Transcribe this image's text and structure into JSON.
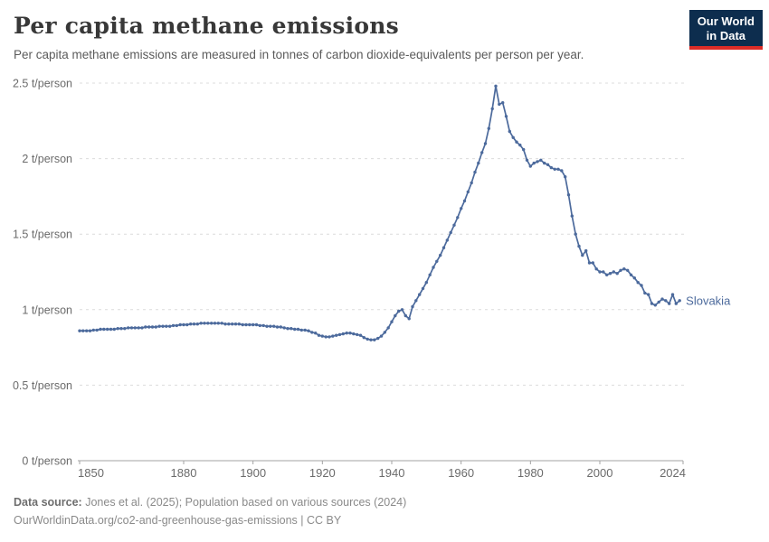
{
  "header": {
    "title": "Per capita methane emissions",
    "subtitle": "Per capita methane emissions are measured in tonnes of carbon dioxide-equivalents per person per year."
  },
  "logo": {
    "line1": "Our World",
    "line2": "in Data",
    "bg_color": "#0d2d4e",
    "accent_color": "#dc2c27"
  },
  "chart_data": {
    "type": "line",
    "title": "Per capita methane emissions",
    "unit": "t/person",
    "xlabel": "",
    "ylabel": "",
    "xlim": [
      1850,
      2024
    ],
    "ylim": [
      0,
      2.5
    ],
    "grid": "horizontal-dashed",
    "legend_position": "end-of-line-label",
    "x_ticks": [
      1850,
      1880,
      1900,
      1920,
      1940,
      1960,
      1980,
      2000,
      2024
    ],
    "y_ticks": [
      {
        "value": 0,
        "label": "0 t/person"
      },
      {
        "value": 0.5,
        "label": "0.5 t/person"
      },
      {
        "value": 1,
        "label": "1 t/person"
      },
      {
        "value": 1.5,
        "label": "1.5 t/person"
      },
      {
        "value": 2,
        "label": "2 t/person"
      },
      {
        "value": 2.5,
        "label": "2.5 t/person"
      }
    ],
    "series": [
      {
        "name": "Slovakia",
        "color": "#4c6a9c",
        "x_start": 1850,
        "x_step": 1,
        "values": [
          0.86,
          0.86,
          0.86,
          0.86,
          0.865,
          0.865,
          0.87,
          0.87,
          0.87,
          0.87,
          0.87,
          0.875,
          0.875,
          0.875,
          0.88,
          0.88,
          0.88,
          0.88,
          0.88,
          0.885,
          0.885,
          0.885,
          0.885,
          0.89,
          0.89,
          0.89,
          0.89,
          0.895,
          0.895,
          0.9,
          0.9,
          0.9,
          0.905,
          0.905,
          0.905,
          0.91,
          0.91,
          0.91,
          0.91,
          0.91,
          0.91,
          0.91,
          0.905,
          0.905,
          0.905,
          0.905,
          0.905,
          0.9,
          0.9,
          0.9,
          0.9,
          0.9,
          0.895,
          0.895,
          0.89,
          0.89,
          0.89,
          0.885,
          0.885,
          0.88,
          0.875,
          0.875,
          0.87,
          0.87,
          0.865,
          0.865,
          0.86,
          0.85,
          0.845,
          0.83,
          0.825,
          0.82,
          0.82,
          0.825,
          0.83,
          0.835,
          0.84,
          0.845,
          0.845,
          0.84,
          0.835,
          0.83,
          0.815,
          0.805,
          0.8,
          0.8,
          0.81,
          0.825,
          0.85,
          0.88,
          0.92,
          0.96,
          0.99,
          1.0,
          0.96,
          0.94,
          1.02,
          1.06,
          1.1,
          1.14,
          1.18,
          1.23,
          1.28,
          1.32,
          1.36,
          1.41,
          1.46,
          1.51,
          1.56,
          1.61,
          1.67,
          1.72,
          1.78,
          1.84,
          1.91,
          1.97,
          2.04,
          2.1,
          2.2,
          2.33,
          2.48,
          2.36,
          2.37,
          2.28,
          2.18,
          2.14,
          2.11,
          2.09,
          2.06,
          1.99,
          1.95,
          1.97,
          1.98,
          1.99,
          1.97,
          1.96,
          1.94,
          1.93,
          1.93,
          1.92,
          1.88,
          1.76,
          1.62,
          1.5,
          1.42,
          1.36,
          1.39,
          1.31,
          1.31,
          1.27,
          1.25,
          1.25,
          1.23,
          1.24,
          1.25,
          1.24,
          1.26,
          1.27,
          1.26,
          1.23,
          1.21,
          1.18,
          1.16,
          1.11,
          1.1,
          1.04,
          1.03,
          1.05,
          1.07,
          1.06,
          1.04,
          1.1,
          1.04,
          1.06
        ]
      }
    ]
  },
  "footer": {
    "datasource_label": "Data source:",
    "datasource_text": " Jones et al. (2025); Population based on various sources (2024)",
    "url": "OurWorldinData.org/co2-and-greenhouse-gas-emissions",
    "separator": " | ",
    "license": "CC BY"
  }
}
